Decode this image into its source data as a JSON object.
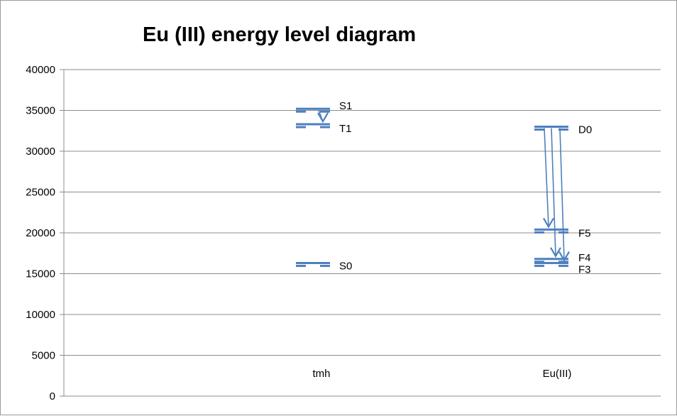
{
  "chart_data": {
    "type": "scatter",
    "title": "Eu (III) energy level diagram",
    "xlabel": "",
    "ylabel": "",
    "ylim": [
      0,
      40000
    ],
    "yticks": [
      0,
      5000,
      10000,
      15000,
      20000,
      25000,
      30000,
      35000,
      40000
    ],
    "categories": [
      "tmh",
      "Eu(III)"
    ],
    "grid": true,
    "legend": "none",
    "colors": {
      "level": "#4f7fbf",
      "grid": "#8c8c8c",
      "axis": "#8c8c8c"
    },
    "levels": [
      {
        "category": "tmh",
        "label": "S1",
        "value": 35200
      },
      {
        "category": "tmh",
        "label": "T1",
        "value": 33300
      },
      {
        "category": "tmh",
        "label": "S0",
        "value": 16300
      },
      {
        "category": "Eu(III)",
        "label": "D0",
        "value": 33000
      },
      {
        "category": "Eu(III)",
        "label": "F5",
        "value": 20400
      },
      {
        "category": "Eu(III)",
        "label": "F4",
        "value": 16800
      },
      {
        "category": "Eu(III)",
        "label": "F3",
        "value": 16300
      }
    ],
    "transitions": [
      {
        "category": "tmh",
        "from": 35200,
        "to": 33300
      },
      {
        "category": "Eu(III)",
        "from": 33000,
        "to": 20400
      },
      {
        "category": "Eu(III)",
        "from": 33000,
        "to": 16800
      },
      {
        "category": "Eu(III)",
        "from": 33000,
        "to": 16300
      }
    ]
  }
}
